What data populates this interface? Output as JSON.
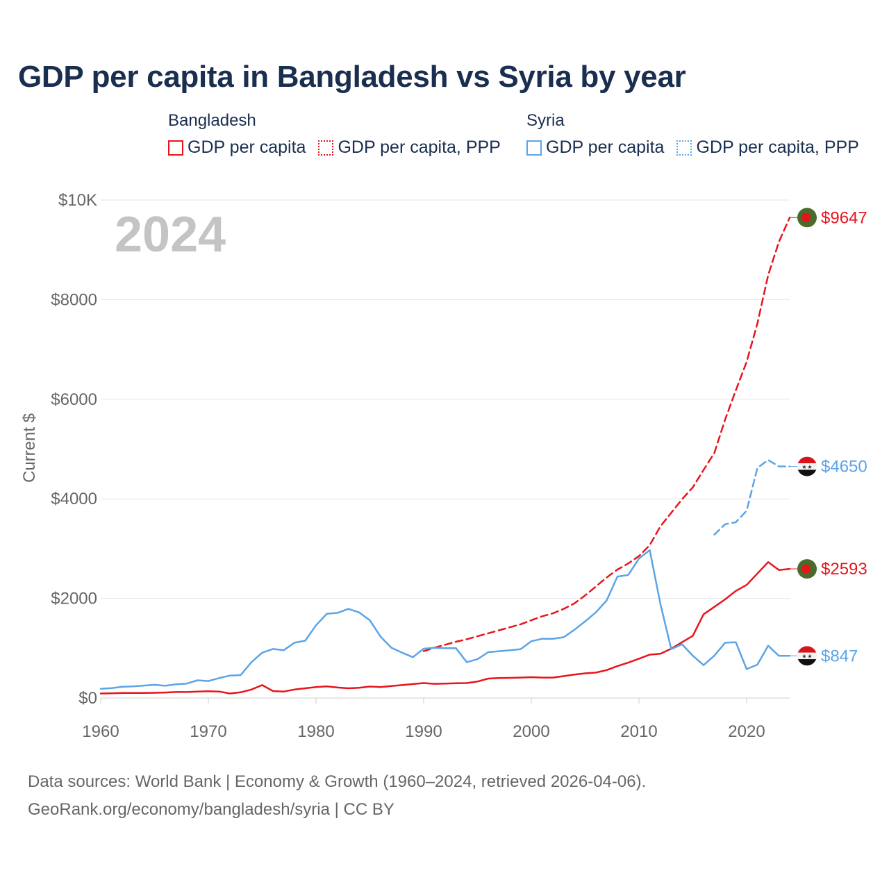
{
  "title": "GDP per capita in Bangladesh vs Syria by year",
  "legend": {
    "groups": [
      {
        "name": "Bangladesh",
        "color": "#e8141c",
        "items": [
          {
            "label": "GDP per capita",
            "style": "solid"
          },
          {
            "label": "GDP per capita, PPP",
            "style": "dotted"
          }
        ]
      },
      {
        "name": "Syria",
        "color": "#5ba4e6",
        "items": [
          {
            "label": "GDP per capita",
            "style": "solid"
          },
          {
            "label": "GDP per capita, PPP",
            "style": "dotted"
          }
        ]
      }
    ]
  },
  "year_label": "2024",
  "footer": {
    "line1": "Data sources: World Bank | Economy & Growth (1960–2024, retrieved 2026-04-06).",
    "line2": "GeoRank.org/economy/bangladesh/syria | CC BY"
  },
  "chart_data": {
    "type": "line",
    "title": "GDP per capita in Bangladesh vs Syria by year",
    "xlabel": "",
    "ylabel": "Current $",
    "xlim": [
      1960,
      2024
    ],
    "ylim": [
      0,
      10000
    ],
    "x_ticks": [
      1960,
      1970,
      1980,
      1990,
      2000,
      2010,
      2020
    ],
    "y_ticks": [
      0,
      2000,
      4000,
      6000,
      8000,
      10000
    ],
    "y_tick_labels": [
      "$0",
      "$2000",
      "$4000",
      "$6000",
      "$8000",
      "$10K"
    ],
    "grid": true,
    "series": [
      {
        "name": "Bangladesh GDP per capita",
        "country": "Bangladesh",
        "color": "#e8141c",
        "dash": "solid",
        "end_label": "$2593",
        "points": [
          [
            1960,
            90
          ],
          [
            1961,
            95
          ],
          [
            1962,
            100
          ],
          [
            1963,
            100
          ],
          [
            1964,
            100
          ],
          [
            1965,
            105
          ],
          [
            1966,
            110
          ],
          [
            1967,
            120
          ],
          [
            1968,
            120
          ],
          [
            1969,
            130
          ],
          [
            1970,
            135
          ],
          [
            1971,
            130
          ],
          [
            1972,
            90
          ],
          [
            1973,
            115
          ],
          [
            1974,
            170
          ],
          [
            1975,
            260
          ],
          [
            1976,
            140
          ],
          [
            1977,
            130
          ],
          [
            1978,
            170
          ],
          [
            1979,
            195
          ],
          [
            1980,
            220
          ],
          [
            1981,
            235
          ],
          [
            1982,
            210
          ],
          [
            1983,
            195
          ],
          [
            1984,
            205
          ],
          [
            1985,
            230
          ],
          [
            1986,
            220
          ],
          [
            1987,
            240
          ],
          [
            1988,
            260
          ],
          [
            1989,
            280
          ],
          [
            1990,
            300
          ],
          [
            1991,
            285
          ],
          [
            1992,
            290
          ],
          [
            1993,
            295
          ],
          [
            1994,
            300
          ],
          [
            1995,
            330
          ],
          [
            1996,
            390
          ],
          [
            1997,
            400
          ],
          [
            1998,
            405
          ],
          [
            1999,
            410
          ],
          [
            2000,
            418
          ],
          [
            2001,
            410
          ],
          [
            2002,
            410
          ],
          [
            2003,
            440
          ],
          [
            2004,
            470
          ],
          [
            2005,
            495
          ],
          [
            2006,
            510
          ],
          [
            2007,
            560
          ],
          [
            2008,
            640
          ],
          [
            2009,
            710
          ],
          [
            2010,
            790
          ],
          [
            2011,
            870
          ],
          [
            2012,
            890
          ],
          [
            2013,
            990
          ],
          [
            2014,
            1120
          ],
          [
            2015,
            1250
          ],
          [
            2016,
            1680
          ],
          [
            2017,
            1830
          ],
          [
            2018,
            1980
          ],
          [
            2019,
            2150
          ],
          [
            2020,
            2270
          ],
          [
            2021,
            2500
          ],
          [
            2022,
            2730
          ],
          [
            2023,
            2570
          ],
          [
            2024,
            2593
          ]
        ]
      },
      {
        "name": "Bangladesh GDP per capita, PPP",
        "country": "Bangladesh",
        "color": "#e8141c",
        "dash": "dashed",
        "end_label": "$9647",
        "points": [
          [
            1990,
            940
          ],
          [
            1991,
            1010
          ],
          [
            1992,
            1070
          ],
          [
            1993,
            1130
          ],
          [
            1994,
            1180
          ],
          [
            1995,
            1240
          ],
          [
            1996,
            1300
          ],
          [
            1997,
            1360
          ],
          [
            1998,
            1420
          ],
          [
            1999,
            1480
          ],
          [
            2000,
            1560
          ],
          [
            2001,
            1640
          ],
          [
            2002,
            1700
          ],
          [
            2003,
            1790
          ],
          [
            2004,
            1900
          ],
          [
            2005,
            2060
          ],
          [
            2006,
            2240
          ],
          [
            2007,
            2420
          ],
          [
            2008,
            2580
          ],
          [
            2009,
            2700
          ],
          [
            2010,
            2850
          ],
          [
            2011,
            3070
          ],
          [
            2012,
            3450
          ],
          [
            2013,
            3720
          ],
          [
            2014,
            3990
          ],
          [
            2015,
            4230
          ],
          [
            2016,
            4580
          ],
          [
            2017,
            4920
          ],
          [
            2018,
            5590
          ],
          [
            2019,
            6180
          ],
          [
            2020,
            6750
          ],
          [
            2021,
            7520
          ],
          [
            2022,
            8490
          ],
          [
            2023,
            9160
          ],
          [
            2024,
            9647
          ]
        ]
      },
      {
        "name": "Syria GDP per capita",
        "country": "Syria",
        "color": "#5ba4e6",
        "dash": "solid",
        "end_label": "$847",
        "points": [
          [
            1960,
            185
          ],
          [
            1961,
            200
          ],
          [
            1962,
            225
          ],
          [
            1963,
            235
          ],
          [
            1964,
            250
          ],
          [
            1965,
            265
          ],
          [
            1966,
            245
          ],
          [
            1967,
            275
          ],
          [
            1968,
            290
          ],
          [
            1969,
            355
          ],
          [
            1970,
            340
          ],
          [
            1971,
            400
          ],
          [
            1972,
            450
          ],
          [
            1973,
            460
          ],
          [
            1974,
            720
          ],
          [
            1975,
            910
          ],
          [
            1976,
            985
          ],
          [
            1977,
            960
          ],
          [
            1978,
            1110
          ],
          [
            1979,
            1150
          ],
          [
            1980,
            1460
          ],
          [
            1981,
            1690
          ],
          [
            1982,
            1710
          ],
          [
            1983,
            1790
          ],
          [
            1984,
            1720
          ],
          [
            1985,
            1560
          ],
          [
            1986,
            1230
          ],
          [
            1987,
            1010
          ],
          [
            1988,
            910
          ],
          [
            1989,
            820
          ],
          [
            1990,
            990
          ],
          [
            1991,
            1010
          ],
          [
            1992,
            1000
          ],
          [
            1993,
            1000
          ],
          [
            1994,
            720
          ],
          [
            1995,
            780
          ],
          [
            1996,
            920
          ],
          [
            1997,
            940
          ],
          [
            1998,
            960
          ],
          [
            1999,
            980
          ],
          [
            2000,
            1140
          ],
          [
            2001,
            1190
          ],
          [
            2002,
            1190
          ],
          [
            2003,
            1220
          ],
          [
            2004,
            1370
          ],
          [
            2005,
            1540
          ],
          [
            2006,
            1720
          ],
          [
            2007,
            1960
          ],
          [
            2008,
            2440
          ],
          [
            2009,
            2470
          ],
          [
            2010,
            2800
          ],
          [
            2011,
            2970
          ],
          [
            2012,
            1880
          ],
          [
            2013,
            980
          ],
          [
            2014,
            1080
          ],
          [
            2015,
            850
          ],
          [
            2016,
            660
          ],
          [
            2017,
            850
          ],
          [
            2018,
            1110
          ],
          [
            2019,
            1120
          ],
          [
            2020,
            580
          ],
          [
            2021,
            670
          ],
          [
            2022,
            1050
          ],
          [
            2023,
            847
          ],
          [
            2024,
            847
          ]
        ]
      },
      {
        "name": "Syria GDP per capita, PPP",
        "country": "Syria",
        "color": "#5ba4e6",
        "dash": "dashed",
        "end_label": "$4650",
        "points": [
          [
            2017,
            3280
          ],
          [
            2018,
            3490
          ],
          [
            2019,
            3530
          ],
          [
            2020,
            3760
          ],
          [
            2021,
            4620
          ],
          [
            2022,
            4780
          ],
          [
            2023,
            4650
          ],
          [
            2024,
            4650
          ]
        ]
      }
    ]
  }
}
